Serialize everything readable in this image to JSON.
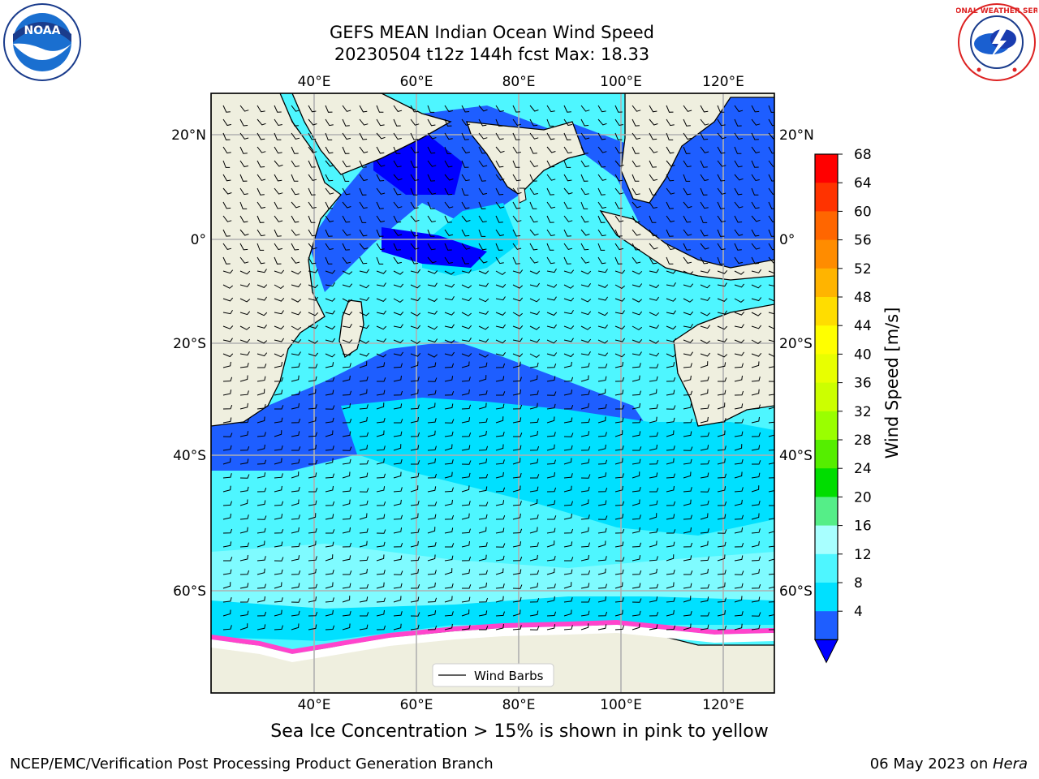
{
  "title_line1": "GEFS MEAN Indian Ocean Wind Speed",
  "title_line2": "20230504 t12z 144h fcst   Max: 18.33",
  "caption": "Sea Ice Concentration > 15% is shown in pink to yellow",
  "footer_left": "NCEP/EMC/Verification Post Processing Product Generation Branch",
  "footer_date": "06 May 2023 on ",
  "footer_host": "Hera",
  "logos": {
    "left_text": "NOAA",
    "right_text": "NATIONAL WEATHER SERVICE",
    "left_icon": "noaa-logo-icon",
    "right_icon": "nws-logo-icon"
  },
  "map": {
    "lon_ticks": [
      "40°E",
      "60°E",
      "80°E",
      "100°E",
      "120°E"
    ],
    "lat_ticks": [
      "20°N",
      "0°",
      "20°S",
      "40°S",
      "60°S"
    ],
    "legend_label": "Wind Barbs",
    "land_color": "#efefdf",
    "ocean_colors": [
      "#0000ff",
      "#1e5eff",
      "#00e0ff",
      "#4ef6ff",
      "#a8ffff"
    ]
  },
  "colorbar": {
    "label": "Wind Speed [m/s]",
    "ticks": [
      "68",
      "64",
      "60",
      "56",
      "52",
      "48",
      "44",
      "40",
      "36",
      "32",
      "28",
      "24",
      "20",
      "16",
      "12",
      "8",
      "4"
    ],
    "colors": [
      "#ff0000",
      "#ff3300",
      "#ff6600",
      "#ff8c00",
      "#ffb400",
      "#ffdd00",
      "#ffff00",
      "#e8ff00",
      "#ccff00",
      "#9aff00",
      "#55ee00",
      "#00dd00",
      "#55ee88",
      "#a8ffff",
      "#4ef6ff",
      "#00e0ff",
      "#1e5eff"
    ],
    "extend_color": "#0000ff"
  }
}
